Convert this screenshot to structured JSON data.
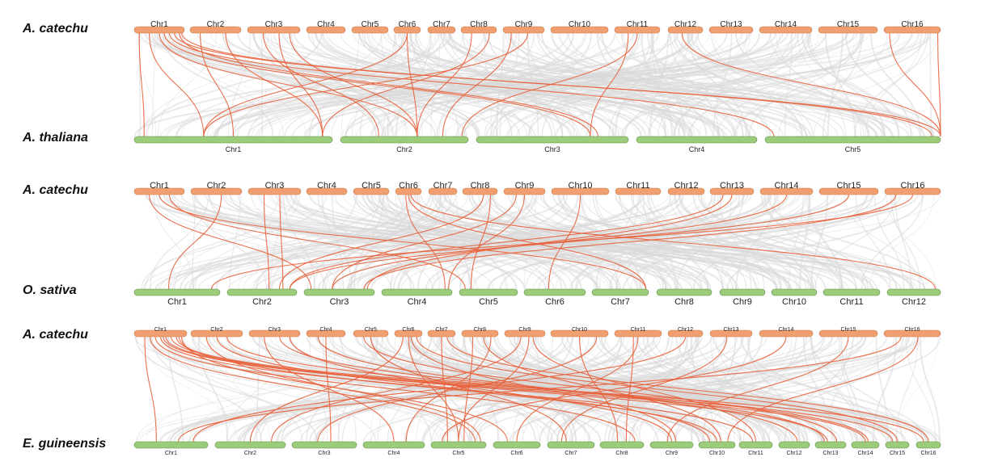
{
  "colors": {
    "query_chromosome": "#f0a070",
    "target_chromosome": "#9ccc7a",
    "background_link": "#d8d8d8",
    "highlight_link": "#e8603a"
  },
  "panels": [
    {
      "query_species": "A. catechu",
      "target_species": "A. thaliana",
      "query_chromosomes": [
        "Chr1",
        "Chr2",
        "Chr3",
        "Chr4",
        "Chr5",
        "Chr6",
        "Chr7",
        "Chr8",
        "Chr9",
        "Chr10",
        "Chr11",
        "Chr12",
        "Chr13",
        "Chr14",
        "Chr15",
        "Chr16"
      ],
      "target_chromosomes": [
        "Chr1",
        "Chr2",
        "Chr3",
        "Chr4",
        "Chr5"
      ]
    },
    {
      "query_species": "A. catechu",
      "target_species": "O. sativa",
      "query_chromosomes": [
        "Chr1",
        "Chr2",
        "Chr3",
        "Chr4",
        "Chr5",
        "Chr6",
        "Chr7",
        "Chr8",
        "Chr9",
        "Chr10",
        "Chr11",
        "Chr12",
        "Chr13",
        "Chr14",
        "Chr15",
        "Chr16"
      ],
      "target_chromosomes": [
        "Chr1",
        "Chr2",
        "Chr3",
        "Chr4",
        "Chr5",
        "Chr6",
        "Chr7",
        "Chr8",
        "Chr9",
        "Chr10",
        "Chr11",
        "Chr12"
      ]
    },
    {
      "query_species": "A. catechu",
      "target_species": "E. guineensis",
      "query_chromosomes": [
        "Chr1",
        "Chr2",
        "Chr3",
        "Chr4",
        "Chr5",
        "Chr6",
        "Chr7",
        "Chr8",
        "Chr9",
        "Chr10",
        "Chr11",
        "Chr12",
        "Chr13",
        "Chr14",
        "Chr15",
        "Chr16"
      ],
      "target_chromosomes": [
        "Chr1",
        "Chr2",
        "Chr3",
        "Chr4",
        "Chr5",
        "Chr6",
        "Chr7",
        "Chr8",
        "Chr9",
        "Chr10",
        "Chr11",
        "Chr12",
        "Chr13",
        "Chr14",
        "Chr15",
        "Chr16"
      ]
    }
  ]
}
